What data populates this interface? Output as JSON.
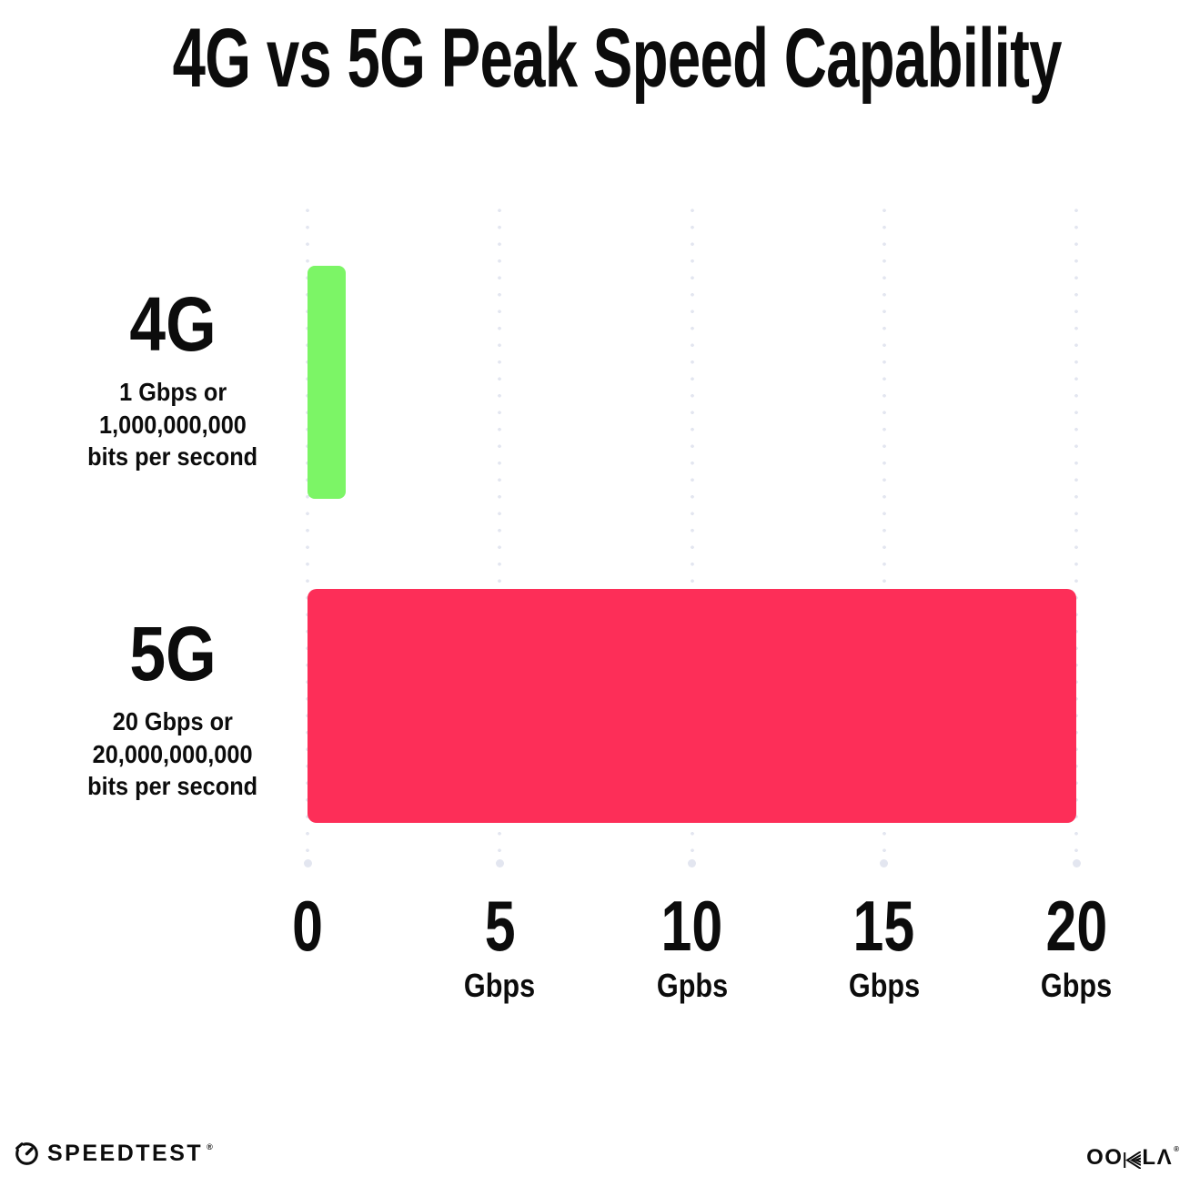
{
  "title": "4G vs 5G Peak Speed Capability",
  "chart_data": {
    "type": "bar",
    "orientation": "horizontal",
    "title": "4G vs 5G Peak Speed Capability",
    "categories": [
      "4G",
      "5G"
    ],
    "values": [
      1,
      20
    ],
    "bar_colors": [
      "#7cf566",
      "#fd2e58"
    ],
    "row_labels": [
      {
        "name": "4G",
        "desc_lines": [
          "1 Gbps or",
          "1,000,000,000",
          "bits per second"
        ]
      },
      {
        "name": "5G",
        "desc_lines": [
          "20 Gbps or",
          "20,000,000,000",
          "bits per second"
        ]
      }
    ],
    "xlabel": "",
    "ylabel": "",
    "xlim": [
      0,
      20
    ],
    "x_ticks": [
      {
        "value": 0,
        "label": "0",
        "unit": ""
      },
      {
        "value": 5,
        "label": "5",
        "unit": "Gbps"
      },
      {
        "value": 10,
        "label": "10",
        "unit": "Gpbs"
      },
      {
        "value": 15,
        "label": "15",
        "unit": "Gbps"
      },
      {
        "value": 20,
        "label": "20",
        "unit": "Gbps"
      }
    ],
    "grid": "vertical dotted gridlines with round end dot",
    "legend": "none"
  },
  "footer": {
    "brand_left": "SPEEDTEST",
    "brand_left_mark": "®",
    "brand_right": "OOKLA",
    "brand_right_display": {
      "pre": "OO",
      "post": "LΛ"
    },
    "brand_right_mark": "®"
  },
  "colors": {
    "ink": "#0c0c0c",
    "grid": "#e3e6f0",
    "bar_4g": "#7cf566",
    "bar_5g": "#fd2e58",
    "background": "#ffffff"
  }
}
